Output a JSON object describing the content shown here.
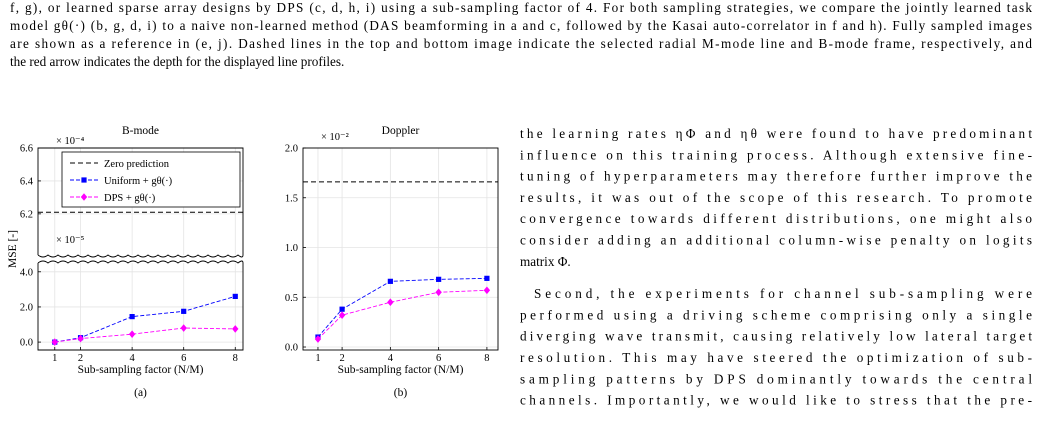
{
  "caption": {
    "lines": [
      "f, g), or learned sparse array designs by DPS (c, d, h, i) using a sub-sampling factor of 4. For both sampling strategies, we compare the jointly learned task",
      "model gθ(·) (b, g, d, i) to a naive non-learned method (DAS beamforming in a and c, followed by the Kasai auto-correlator in f and h). Fully sampled images",
      "are shown as a reference in (e, j). Dashed lines in the top and bottom image indicate the selected radial M-mode line and B-mode frame, respectively, and",
      "the red arrow indicates the depth for the displayed line profiles."
    ]
  },
  "body": {
    "paragraphs": [
      {
        "lines": [
          "the learning rates ηΦ and ηθ were found to have predominant",
          "influence on this training process. Although extensive fine-",
          "tuning of hyperparameters may therefore further improve the",
          "results, it was out of the scope of this research. To promote",
          "convergence towards different distributions, one might also",
          "consider adding an additional column-wise penalty on logits",
          "matrix Φ."
        ]
      },
      {
        "lines": [
          "Second, the experiments for channel sub-sampling were",
          "performed using a driving scheme comprising only a single",
          "diverging wave transmit, causing relatively low lateral target",
          "resolution. This may have steered the optimization of sub-",
          "sampling patterns by DPS dominantly towards the central",
          "channels. Importantly, we would like to stress that the pre-"
        ]
      }
    ]
  },
  "chart_data": [
    {
      "type": "line",
      "title": "B-mode",
      "caption": "(a)",
      "ylabel": "MSE [-]",
      "xlabel": "Sub-sampling factor (N/M)",
      "x": [
        1,
        2,
        4,
        6,
        8
      ],
      "xlim": [
        0.35,
        8.3
      ],
      "xticks": [
        1,
        2,
        4,
        6,
        8
      ],
      "broken_axis": true,
      "ylim": [
        -0.45,
        4.5
      ],
      "yticks": [
        {
          "value": 0,
          "label": "0.0"
        },
        {
          "value": 2,
          "label": "2.0"
        },
        {
          "value": 4,
          "label": "4.0"
        }
      ],
      "y_scale": "× 10⁻⁵",
      "y2lim": [
        5.95,
        6.6
      ],
      "y2ticks": [
        6.2,
        6.4,
        6.6
      ],
      "y2_scale": "× 10⁻⁴",
      "reference_line": {
        "name": "Zero prediction",
        "value": 6.21,
        "axis": "y2",
        "color": "#000000",
        "dash": true
      },
      "series": [
        {
          "name": "Uniform + gθ(·)",
          "color": "#0000ff",
          "marker": "square",
          "values": [
            0.0,
            0.25,
            1.45,
            1.75,
            2.6
          ]
        },
        {
          "name": "DPS + gθ(·)",
          "color": "#ff00ff",
          "marker": "diamond",
          "values": [
            0.0,
            0.2,
            0.45,
            0.8,
            0.75
          ]
        }
      ],
      "legend": "upper right",
      "grid": true
    },
    {
      "type": "line",
      "title": "Doppler",
      "caption": "(b)",
      "xlabel": "Sub-sampling factor (N/M)",
      "x": [
        1,
        2,
        4,
        6,
        8
      ],
      "xlim": [
        0.38,
        8.46
      ],
      "xticks": [
        1,
        2,
        4,
        6,
        8
      ],
      "ylim": [
        -0.03,
        2.0
      ],
      "yticks": [
        {
          "value": 0,
          "label": "0.0"
        },
        0.5,
        {
          "value": 1,
          "label": "1.0"
        },
        1.5,
        {
          "value": 2,
          "label": "2.0"
        }
      ],
      "y_scale": "× 10⁻²",
      "reference_line": {
        "value": 1.66,
        "axis": "y",
        "color": "#000000",
        "dash": true
      },
      "series": [
        {
          "color": "#0000ff",
          "marker": "square",
          "values": [
            0.1,
            0.38,
            0.66,
            0.68,
            0.69
          ]
        },
        {
          "color": "#ff00ff",
          "marker": "diamond",
          "values": [
            0.08,
            0.32,
            0.45,
            0.55,
            0.57
          ]
        }
      ],
      "grid": true
    }
  ]
}
